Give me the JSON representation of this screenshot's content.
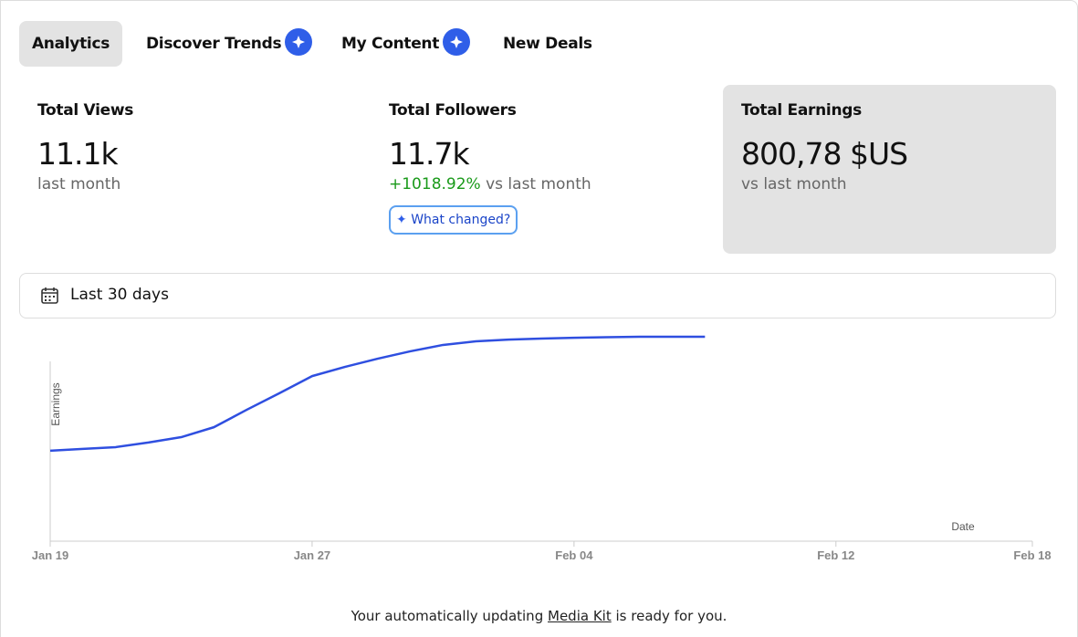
{
  "tabs": [
    "Analytics",
    "Discover Trends",
    "My Content",
    "New Deals"
  ],
  "stats": [
    {
      "label": "Total Views",
      "value": "11.1k",
      "sub": "last month"
    },
    {
      "label": "Total Followers",
      "value": "11.7k",
      "change": "+1018.92%",
      "sub": "vs last month",
      "button": "What changed?"
    },
    {
      "label": "Total Earnings",
      "value": "800,78 $US",
      "sub": "vs last month"
    }
  ],
  "date_range": "Last 30 days",
  "chart_data": {
    "type": "line",
    "y_label": "Earnings",
    "x_label": "Date",
    "x": [
      "Jan 19",
      "Jan 20",
      "Jan 21",
      "Jan 22",
      "Jan 23",
      "Jan 24",
      "Jan 25",
      "Jan 26",
      "Jan 27",
      "Jan 28",
      "Jan 29",
      "Jan 30",
      "Jan 31",
      "Feb 01",
      "Feb 02",
      "Feb 03",
      "Feb 04",
      "Feb 05",
      "Feb 06",
      "Feb 07",
      "Feb 08"
    ],
    "series": [
      {
        "name": "Earnings",
        "color": "#2f4fe0",
        "values": [
          354,
          361,
          368,
          386,
          407,
          446,
          514,
          579,
          646,
          682,
          714,
          743,
          768,
          782,
          789,
          793,
          796,
          798,
          800,
          800,
          800
        ]
      }
    ],
    "xlim": [
      "Jan 19",
      "Feb 18"
    ],
    "xticks": [
      "Jan 19",
      "Jan 27",
      "Feb 04",
      "Feb 12",
      "Feb 18"
    ],
    "ylim": [
      0,
      800
    ]
  },
  "footer": {
    "before": "Your automatically updating",
    "link": "Media Kit",
    "after": "is ready for you."
  }
}
